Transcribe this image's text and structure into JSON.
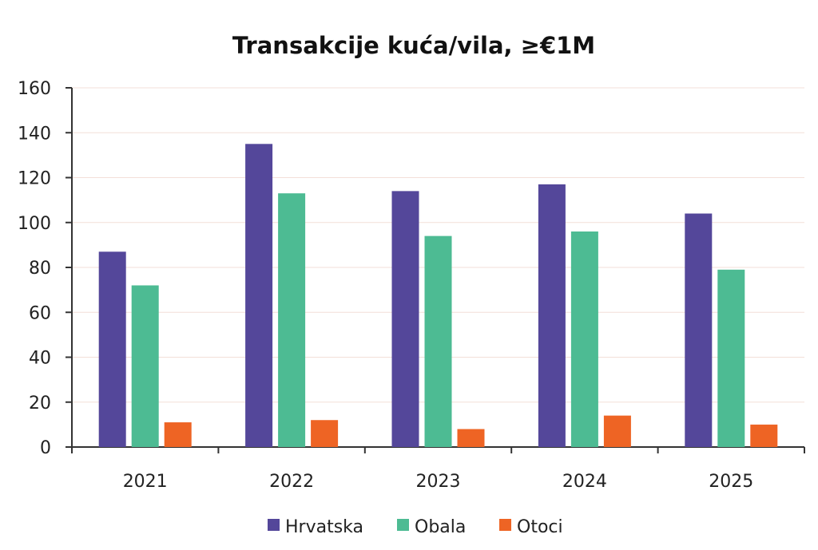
{
  "chart_data": {
    "type": "bar",
    "title": "Transakcije kuća/vila, ≥€1M",
    "categories": [
      "2021",
      "2022",
      "2023",
      "2024",
      "2025"
    ],
    "series": [
      {
        "name": "Hrvatska",
        "values": [
          87,
          135,
          114,
          117,
          104
        ],
        "color": "#54479A"
      },
      {
        "name": "Obala",
        "values": [
          72,
          113,
          94,
          96,
          79
        ],
        "color": "#4DBB93"
      },
      {
        "name": "Otoci",
        "values": [
          11,
          12,
          8,
          14,
          10
        ],
        "color": "#EE6424"
      }
    ],
    "ylim": [
      0,
      160
    ],
    "yticks": [
      0,
      20,
      40,
      60,
      80,
      100,
      120,
      140,
      160
    ],
    "grid": true,
    "legend_position": "bottom"
  }
}
